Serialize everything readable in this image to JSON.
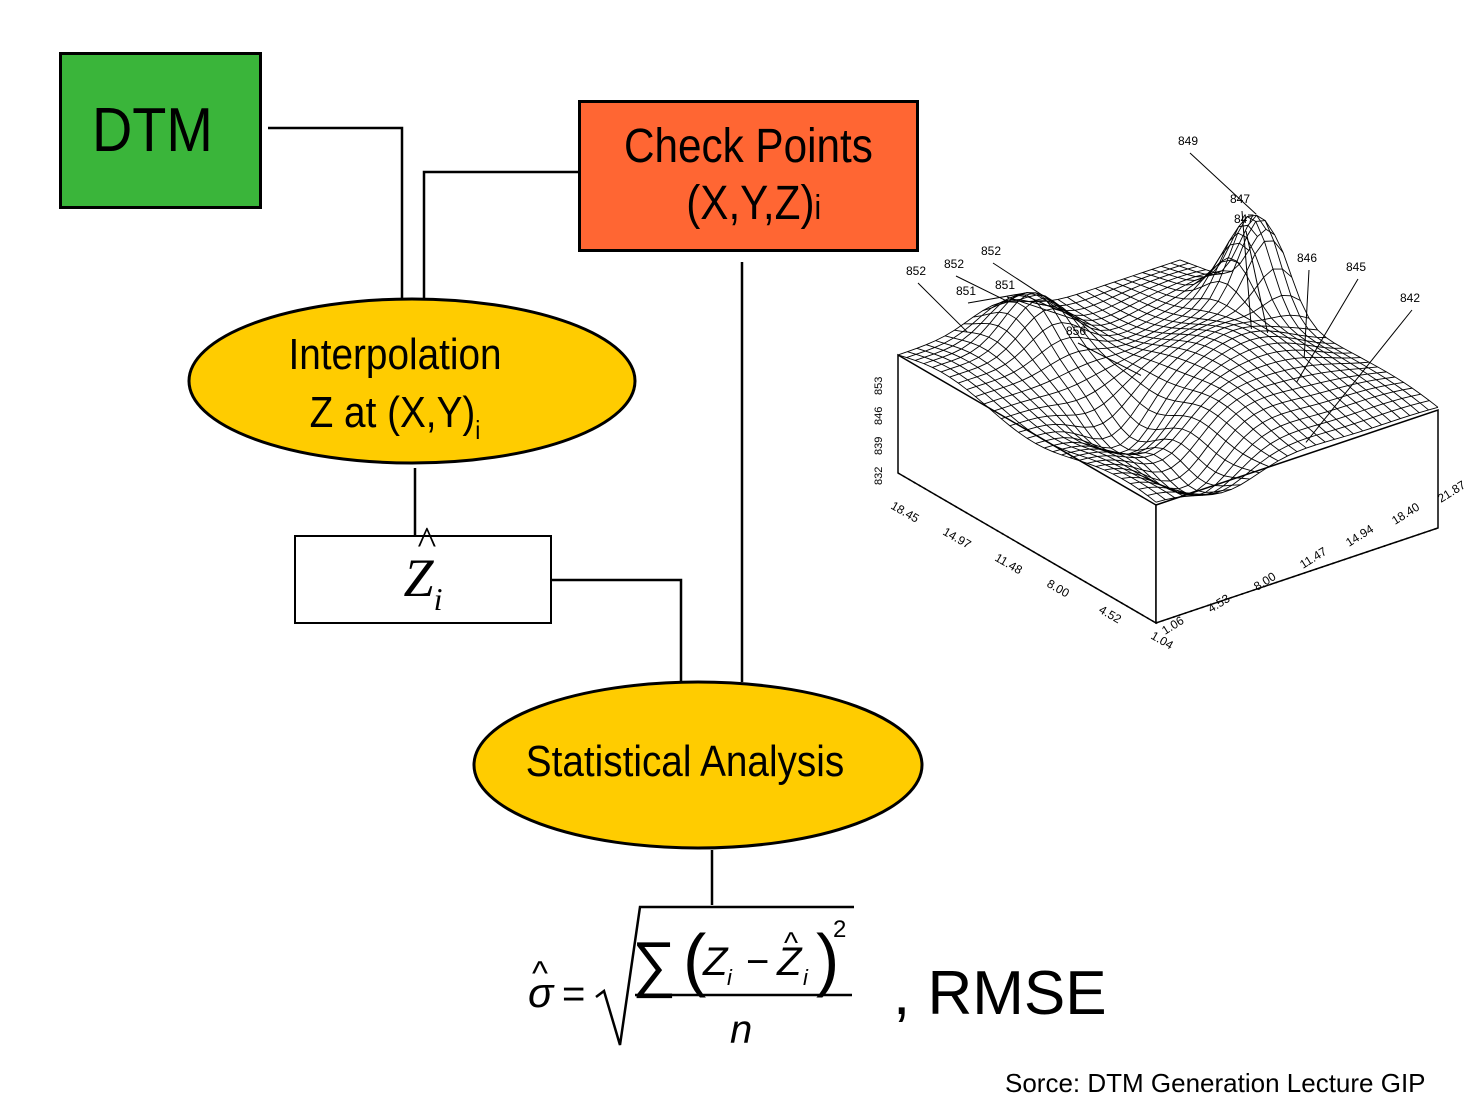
{
  "dtm": {
    "label": "DTM",
    "color": "#3ab53a"
  },
  "check_points": {
    "line1": "Check Points",
    "line2": "(X,Y,Z)",
    "sub": "i",
    "color": "#ff6633"
  },
  "interpolation": {
    "line1": "Interpolation",
    "line2": "Z at (X,Y)",
    "sub": "i",
    "color": "#ffcc00"
  },
  "z_hat": {
    "symbol": "Z",
    "sub": "i"
  },
  "statistical": {
    "label": "Statistical Analysis",
    "color": "#ffcc00"
  },
  "formula": {
    "sigma": "σ",
    "equals": "=",
    "sum": "∑",
    "z": "Z",
    "sub": "i",
    "minus": "−",
    "power": "2",
    "n": "n",
    "suffix": ", RMSE"
  },
  "terrain": {
    "peak_labels": [
      "849",
      "847",
      "847",
      "846",
      "845",
      "842",
      "852",
      "852",
      "852",
      "851",
      "851",
      "856"
    ],
    "z_ticks": [
      "832",
      "839",
      "846",
      "853"
    ],
    "left_axis_ticks": [
      "18.45",
      "14.97",
      "11.48",
      "8.00",
      "4.52",
      "1.04"
    ],
    "right_axis_ticks": [
      "1.06",
      "4.53",
      "8.00",
      "11.47",
      "14.94",
      "18.40",
      "21.87"
    ]
  },
  "source": "Sorce: DTM Generation Lecture GIP"
}
